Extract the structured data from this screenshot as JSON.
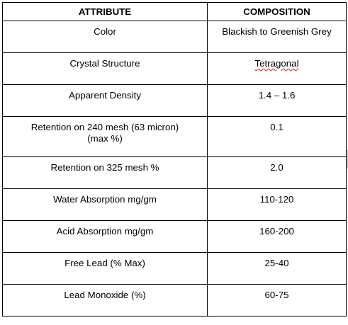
{
  "table": {
    "headers": [
      "ATTRIBUTE",
      "COMPOSITION"
    ],
    "rows": [
      {
        "attribute": "Color",
        "composition": "Blackish to Greenish Grey"
      },
      {
        "attribute": "Crystal Structure",
        "composition": "Tetragonal"
      },
      {
        "attribute": "Apparent Density",
        "composition": "1.4 – 1.6"
      },
      {
        "attribute": "Retention on 240 mesh (63 micron)\n(max %)",
        "composition": "0.1"
      },
      {
        "attribute": "Retention on 325 mesh %",
        "composition": "2.0"
      },
      {
        "attribute": "Water Absorption mg/gm",
        "composition": "110-120"
      },
      {
        "attribute": "Acid Absorption mg/gm",
        "composition": "160-200"
      },
      {
        "attribute": "Free Lead (% Max)",
        "composition": "25-40"
      },
      {
        "attribute": "Lead Monoxide (%)",
        "composition": "60-75"
      }
    ]
  }
}
